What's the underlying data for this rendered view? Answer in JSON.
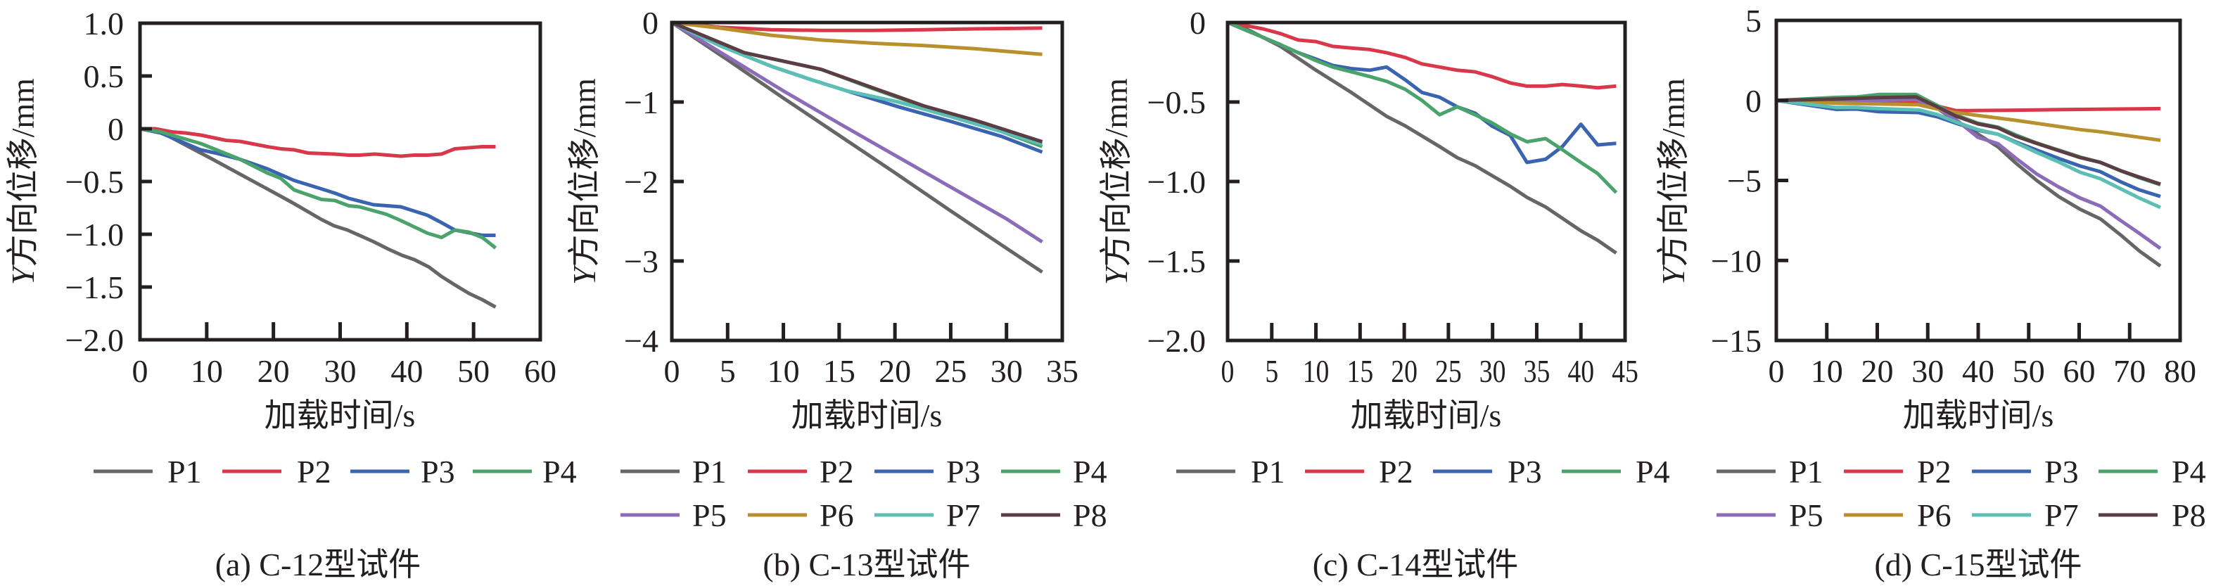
{
  "colors": {
    "P1": "#666666",
    "P2": "#d9384a",
    "P3": "#3a63b0",
    "P4": "#4aa36a",
    "P5": "#8c6bb8",
    "P6": "#b8902e",
    "P7": "#5bbfb5",
    "P8": "#5a3e44"
  },
  "chart_data": [
    {
      "type": "line",
      "title": "",
      "caption": "(a) C-12型试件",
      "xlabel": "加载时间/s",
      "ylabel_italic": "Y",
      "ylabel_rest": "方向位移/mm",
      "xlim": [
        0,
        60
      ],
      "ylim": [
        -2.0,
        1.0
      ],
      "xticks": [
        0,
        10,
        20,
        30,
        40,
        50,
        60
      ],
      "xtick_labels": [
        "0",
        "10",
        "20",
        "30",
        "40",
        "50",
        "60"
      ],
      "yticks": [
        1.0,
        0.5,
        0,
        -0.5,
        -1.0,
        -1.5,
        -2.0
      ],
      "ytick_labels": [
        "1.0",
        "0.5",
        "0",
        "−0.5",
        "−1.0",
        "−1.5",
        "−2.0"
      ],
      "grid": false,
      "legend_position": "bottom",
      "legend": [
        "P1",
        "P2",
        "P3",
        "P4"
      ],
      "series": [
        {
          "name": "P1",
          "x": [
            0,
            3.1,
            10.9,
            21.1,
            23.1,
            27.2,
            29.1,
            31.1,
            35,
            37.2,
            39.3,
            41.1,
            43.3,
            45.2,
            47.2,
            49.3,
            51.3,
            53.3
          ],
          "y": [
            0,
            -0.03,
            -0.29,
            -0.64,
            -0.71,
            -0.86,
            -0.92,
            -0.96,
            -1.07,
            -1.14,
            -1.2,
            -1.24,
            -1.31,
            -1.4,
            -1.48,
            -1.56,
            -1.62,
            -1.69
          ]
        },
        {
          "name": "P2",
          "x": [
            0,
            2.3,
            4.8,
            6.8,
            9.1,
            12.9,
            15,
            19.1,
            21.1,
            23.1,
            25.2,
            29.1,
            31.3,
            32.9,
            35.2,
            39.1,
            41.1,
            43.1,
            45.2,
            47.2,
            49.3,
            51.3,
            53.3
          ],
          "y": [
            0,
            0,
            -0.03,
            -0.04,
            -0.06,
            -0.11,
            -0.12,
            -0.17,
            -0.19,
            -0.2,
            -0.23,
            -0.24,
            -0.25,
            -0.25,
            -0.24,
            -0.26,
            -0.25,
            -0.25,
            -0.24,
            -0.19,
            -0.18,
            -0.17,
            -0.17
          ]
        },
        {
          "name": "P3",
          "x": [
            0,
            3.1,
            9.1,
            11.3,
            15,
            19.1,
            23.1,
            27.2,
            29.2,
            31.3,
            35,
            39.1,
            43.1,
            45.2,
            47.2,
            51.3,
            53.3
          ],
          "y": [
            0,
            -0.04,
            -0.2,
            -0.23,
            -0.29,
            -0.38,
            -0.49,
            -0.57,
            -0.61,
            -0.66,
            -0.72,
            -0.74,
            -0.82,
            -0.89,
            -0.96,
            -1.01,
            -1.01
          ]
        },
        {
          "name": "P4",
          "x": [
            0,
            3.1,
            9.1,
            15,
            19.1,
            21.1,
            23.1,
            27.2,
            29.2,
            31.3,
            32.9,
            36.9,
            39.1,
            43.1,
            45.2,
            47.2,
            49.3,
            51.3,
            53.3
          ],
          "y": [
            0,
            -0.03,
            -0.14,
            -0.29,
            -0.42,
            -0.47,
            -0.58,
            -0.67,
            -0.68,
            -0.73,
            -0.74,
            -0.81,
            -0.87,
            -0.99,
            -1.03,
            -0.96,
            -0.98,
            -1.03,
            -1.13
          ]
        }
      ]
    },
    {
      "type": "line",
      "title": "",
      "caption": "(b) C-13型试件",
      "xlabel": "加载时间/s",
      "ylabel_italic": "Y",
      "ylabel_rest": "方向位移/mm",
      "xlim": [
        0,
        35
      ],
      "ylim": [
        -4,
        0
      ],
      "xticks": [
        0,
        5,
        10,
        15,
        20,
        25,
        30,
        35
      ],
      "xtick_labels": [
        "0",
        "5",
        "10",
        "15",
        "20",
        "25",
        "30",
        "35"
      ],
      "yticks": [
        0,
        -1,
        -2,
        -3,
        -4
      ],
      "ytick_labels": [
        "0",
        "−1",
        "−2",
        "−3",
        "−4"
      ],
      "grid": false,
      "legend_position": "bottom",
      "legend": [
        "P1",
        "P2",
        "P3",
        "P4",
        "P5",
        "P6",
        "P7",
        "P8"
      ],
      "series": [
        {
          "name": "P1",
          "x": [
            0,
            5,
            10,
            15,
            20,
            25,
            30,
            33.2
          ],
          "y": [
            0,
            -0.47,
            -0.95,
            -1.42,
            -1.89,
            -2.37,
            -2.84,
            -3.14
          ]
        },
        {
          "name": "P2",
          "x": [
            0,
            4.3,
            8.9,
            13.4,
            18,
            22.6,
            27.2,
            33.2
          ],
          "y": [
            0,
            -0.06,
            -0.09,
            -0.1,
            -0.1,
            -0.09,
            -0.08,
            -0.07
          ]
        },
        {
          "name": "P3",
          "x": [
            0,
            4.3,
            8.9,
            12.3,
            15.7,
            20.3,
            24.9,
            29.5,
            33.2
          ],
          "y": [
            0,
            -0.29,
            -0.55,
            -0.71,
            -0.86,
            -1.06,
            -1.24,
            -1.43,
            -1.63
          ]
        },
        {
          "name": "P4",
          "x": [
            0,
            6.5,
            13.4,
            18,
            22.6,
            27.2,
            33.2
          ],
          "y": [
            0,
            -0.38,
            -0.59,
            -0.83,
            -1.06,
            -1.25,
            -1.56
          ]
        },
        {
          "name": "P5",
          "x": [
            0,
            5,
            10,
            15,
            20,
            25,
            30,
            33.2
          ],
          "y": [
            0,
            -0.43,
            -0.86,
            -1.27,
            -1.67,
            -2.07,
            -2.47,
            -2.76
          ]
        },
        {
          "name": "P6",
          "x": [
            0,
            4.3,
            8.9,
            13.4,
            18,
            22.6,
            27.2,
            33.2
          ],
          "y": [
            0,
            -0.07,
            -0.16,
            -0.22,
            -0.26,
            -0.29,
            -0.33,
            -0.4
          ]
        },
        {
          "name": "P7",
          "x": [
            0,
            4.3,
            8.9,
            12.3,
            15.7,
            20.3,
            24.9,
            29.5,
            33.2
          ],
          "y": [
            0,
            -0.29,
            -0.55,
            -0.71,
            -0.86,
            -1.0,
            -1.18,
            -1.37,
            -1.53
          ]
        },
        {
          "name": "P8",
          "x": [
            0,
            6.5,
            13.4,
            18,
            22.6,
            27.2,
            33.2
          ],
          "y": [
            0,
            -0.38,
            -0.59,
            -0.82,
            -1.05,
            -1.23,
            -1.5
          ]
        }
      ]
    },
    {
      "type": "line",
      "title": "",
      "caption": "(c) C-14型试件",
      "xlabel": "加载时间/s",
      "ylabel_italic": "Y",
      "ylabel_rest": "方向位移/mm",
      "xlim": [
        0,
        45
      ],
      "ylim": [
        -2.0,
        0
      ],
      "xticks": [
        0,
        5,
        10,
        15,
        20,
        25,
        30,
        35,
        40,
        45
      ],
      "xtick_labels": [
        "0",
        "5",
        "10",
        "15",
        "20",
        "25",
        "30",
        "35",
        "40",
        "45"
      ],
      "yticks": [
        0,
        -0.5,
        -1.0,
        -1.5,
        -2.0
      ],
      "ytick_labels": [
        "0",
        "−0.5",
        "−1.0",
        "−1.5",
        "−2.0"
      ],
      "grid": false,
      "legend_position": "bottom",
      "legend": [
        "P1",
        "P2",
        "P3",
        "P4"
      ],
      "series": [
        {
          "name": "P1",
          "x": [
            0,
            2.1,
            6,
            10,
            14,
            18,
            20.1,
            24,
            26,
            28,
            32,
            33.9,
            36,
            40,
            41.9,
            44
          ],
          "y": [
            0,
            -0.04,
            -0.15,
            -0.3,
            -0.44,
            -0.59,
            -0.65,
            -0.78,
            -0.85,
            -0.9,
            -1.03,
            -1.1,
            -1.16,
            -1.31,
            -1.37,
            -1.45
          ]
        },
        {
          "name": "P2",
          "x": [
            0,
            2.1,
            4,
            6,
            8,
            10,
            11.9,
            14,
            16.1,
            18,
            20.1,
            22,
            24,
            26,
            28,
            29.9,
            32,
            33.9,
            36,
            37.9,
            40,
            41.9,
            44
          ],
          "y": [
            0,
            -0.02,
            -0.04,
            -0.07,
            -0.11,
            -0.12,
            -0.15,
            -0.16,
            -0.17,
            -0.19,
            -0.22,
            -0.26,
            -0.28,
            -0.3,
            -0.31,
            -0.34,
            -0.38,
            -0.4,
            -0.4,
            -0.39,
            -0.4,
            -0.41,
            -0.4
          ]
        },
        {
          "name": "P3",
          "x": [
            0,
            6,
            8,
            10,
            11.9,
            14,
            16.1,
            18,
            20.1,
            22,
            24,
            26,
            28,
            29.9,
            32,
            33.9,
            36,
            37.9,
            40,
            41.9,
            44
          ],
          "y": [
            0,
            -0.14,
            -0.19,
            -0.23,
            -0.27,
            -0.29,
            -0.3,
            -0.28,
            -0.36,
            -0.44,
            -0.47,
            -0.53,
            -0.57,
            -0.65,
            -0.71,
            -0.88,
            -0.86,
            -0.78,
            -0.64,
            -0.77,
            -0.76
          ]
        },
        {
          "name": "P4",
          "x": [
            0,
            6,
            8,
            10,
            11.9,
            14,
            16.1,
            18,
            20.1,
            22,
            24,
            26,
            28,
            29.9,
            32,
            33.9,
            36,
            37.9,
            40,
            41.9,
            44
          ],
          "y": [
            0,
            -0.14,
            -0.19,
            -0.24,
            -0.28,
            -0.31,
            -0.34,
            -0.37,
            -0.42,
            -0.49,
            -0.58,
            -0.53,
            -0.58,
            -0.63,
            -0.7,
            -0.75,
            -0.73,
            -0.8,
            -0.88,
            -0.95,
            -1.07
          ]
        }
      ]
    },
    {
      "type": "line",
      "title": "",
      "caption": "(d) C-15型试件",
      "xlabel": "加载时间/s",
      "ylabel_italic": "Y",
      "ylabel_rest": "方向位移/mm",
      "xlim": [
        0,
        80
      ],
      "ylim": [
        -15,
        5
      ],
      "xticks": [
        0,
        10,
        20,
        30,
        40,
        50,
        60,
        70,
        80
      ],
      "xtick_labels": [
        "0",
        "10",
        "20",
        "30",
        "40",
        "50",
        "60",
        "70",
        "80"
      ],
      "yticks": [
        5,
        0,
        -5,
        -10,
        -15
      ],
      "ytick_labels": [
        "5",
        "0",
        "−5",
        "−10",
        "−15"
      ],
      "grid": false,
      "legend_position": "bottom",
      "legend": [
        "P1",
        "P2",
        "P3",
        "P4",
        "P5",
        "P6",
        "P7",
        "P8"
      ],
      "series": [
        {
          "name": "P1",
          "x": [
            0,
            12,
            20.3,
            28.2,
            31.9,
            35.6,
            39.9,
            43.9,
            47.4,
            51.6,
            55.9,
            60.2,
            64.2,
            68.2,
            71.9,
            76.1
          ],
          "y": [
            0,
            0.05,
            0.08,
            0.1,
            -0.5,
            -1.3,
            -2.1,
            -2.9,
            -3.9,
            -5.0,
            -6.0,
            -6.8,
            -7.4,
            -8.4,
            -9.4,
            -10.35
          ]
        },
        {
          "name": "P2",
          "x": [
            0,
            12,
            20.3,
            28.2,
            31.9,
            35.6,
            47.4,
            60.2,
            76.1
          ],
          "y": [
            0,
            -0.05,
            -0.08,
            -0.12,
            -0.35,
            -0.64,
            -0.61,
            -0.56,
            -0.51
          ]
        },
        {
          "name": "P3",
          "x": [
            0,
            12,
            15.9,
            20.2,
            28.2,
            31.9,
            35.6,
            39.9,
            43.9,
            47.4,
            51.6,
            55.9,
            60.2,
            64.2,
            68.2,
            71.9,
            76.1
          ],
          "y": [
            0,
            -0.56,
            -0.54,
            -0.7,
            -0.76,
            -1.02,
            -1.42,
            -1.86,
            -2.11,
            -2.59,
            -3.1,
            -3.62,
            -4.1,
            -4.45,
            -5.08,
            -5.59,
            -6.0
          ]
        },
        {
          "name": "P4",
          "x": [
            0,
            12,
            16,
            20.3,
            27.7,
            31.9,
            35.6,
            39.9,
            43.9,
            47.4,
            51.6,
            55.9,
            60.2,
            64.2,
            68.2,
            71.9,
            76.1
          ],
          "y": [
            0,
            0.19,
            0.22,
            0.37,
            0.37,
            -0.32,
            -0.91,
            -1.42,
            -1.67,
            -2.15,
            -2.66,
            -3.1,
            -3.54,
            -3.87,
            -4.39,
            -4.83,
            -5.27
          ]
        },
        {
          "name": "P5",
          "x": [
            0,
            10,
            20.3,
            27.7,
            31.9,
            35.6,
            39.9,
            43.9,
            47.4,
            51.6,
            55.9,
            60.2,
            64.2,
            68.2,
            71.9,
            76.1
          ],
          "y": [
            0,
            0,
            0,
            0.07,
            -0.5,
            -1.2,
            -2.3,
            -2.7,
            -3.6,
            -4.6,
            -5.4,
            -6.1,
            -6.6,
            -7.5,
            -8.3,
            -9.25
          ]
        },
        {
          "name": "P6",
          "x": [
            0,
            12,
            20.3,
            28.2,
            31.9,
            35.6,
            39.9,
            47.4,
            60.2,
            64.2,
            76.1
          ],
          "y": [
            0,
            -0.18,
            -0.22,
            -0.27,
            -0.54,
            -0.76,
            -0.94,
            -1.24,
            -1.82,
            -1.96,
            -2.49
          ]
        },
        {
          "name": "P7",
          "x": [
            0,
            11.9,
            15.9,
            20.3,
            28.2,
            31.9,
            35.6,
            39.9,
            43.9,
            47.4,
            51.6,
            55.9,
            60.2,
            64.2,
            68.2,
            71.9,
            76.1
          ],
          "y": [
            0,
            -0.44,
            -0.44,
            -0.51,
            -0.59,
            -0.88,
            -1.35,
            -1.82,
            -2.11,
            -2.64,
            -3.25,
            -3.84,
            -4.49,
            -4.89,
            -5.52,
            -6.1,
            -6.69
          ]
        },
        {
          "name": "P8",
          "x": [
            0,
            12,
            20.3,
            27.7,
            31.9,
            35.6,
            39.9,
            43.9,
            47.4,
            51.6,
            55.9,
            60.2,
            64.2,
            68.2,
            71.9,
            76.1
          ],
          "y": [
            0,
            0.09,
            0.18,
            0.22,
            -0.4,
            -0.98,
            -1.46,
            -1.71,
            -2.23,
            -2.69,
            -3.13,
            -3.57,
            -3.87,
            -4.39,
            -4.79,
            -5.23
          ]
        }
      ]
    }
  ]
}
